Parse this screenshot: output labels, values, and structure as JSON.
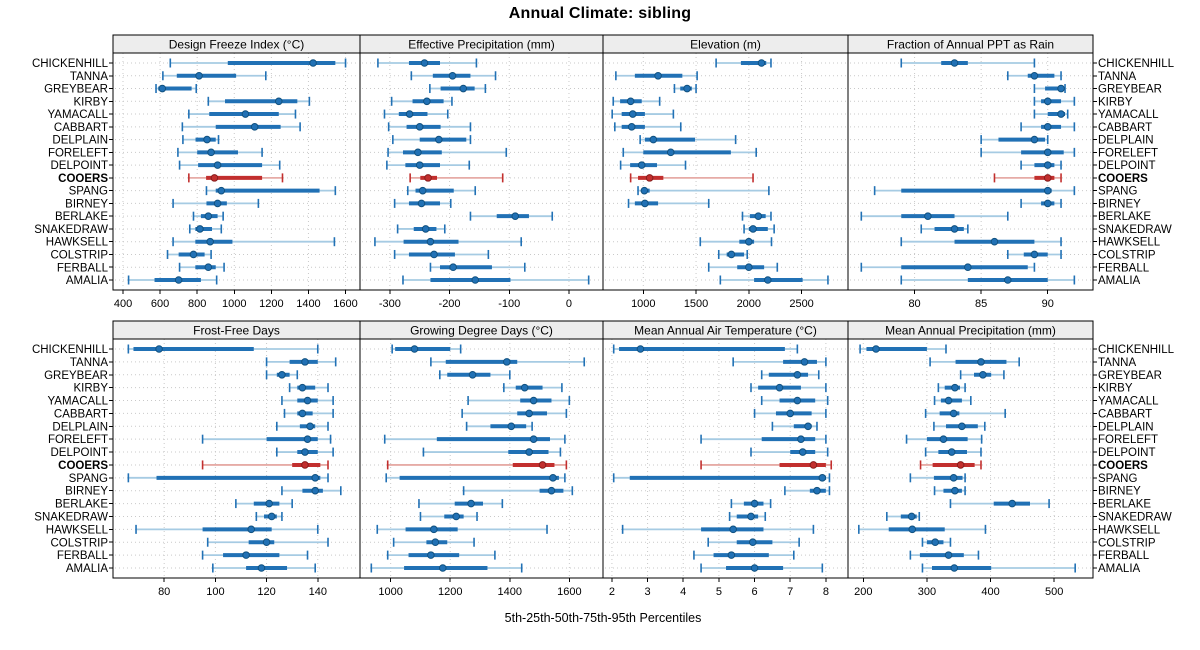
{
  "title": "Annual Climate: sibling",
  "footer_label": "5th-25th-50th-75th-95th Percentiles",
  "percentile_levels": [
    "5th",
    "25th",
    "50th",
    "75th",
    "95th"
  ],
  "stations": [
    "CHICKENHILL",
    "TANNA",
    "GREYBEAR",
    "KIRBY",
    "YAMACALL",
    "CABBART",
    "DELPLAIN",
    "FORELEFT",
    "DELPOINT",
    "COOERS",
    "SPANG",
    "BIRNEY",
    "BERLAKE",
    "SNAKEDRAW",
    "HAWKSELL",
    "COLSTRIP",
    "FERBALL",
    "AMALIA"
  ],
  "highlighted_station": "COOERS",
  "colors": {
    "series": "#2171b5",
    "series_light": "#a6cbe3",
    "series_dark": "#11517f",
    "highlight": "#c22f2e",
    "highlight_light": "#e6aba6",
    "highlight_dark": "#871d1c",
    "strip_bg": "#ededed",
    "grid": "#c9c9c9"
  },
  "chart_data": [
    {
      "type": "scatter",
      "subtype": "percentile-range-dotplot",
      "title": "Design Freeze Index (°C)",
      "grid": {
        "row": 0,
        "col": 0
      },
      "xlim": [
        346,
        1678
      ],
      "ticks": [
        400,
        600,
        800,
        1000,
        1200,
        1400,
        1600
      ],
      "values": [
        [
          655,
          965,
          1425,
          1545,
          1600
        ],
        [
          615,
          690,
          810,
          1010,
          1170
        ],
        [
          578,
          590,
          612,
          770,
          795
        ],
        [
          860,
          950,
          1240,
          1340,
          1405
        ],
        [
          755,
          865,
          1060,
          1240,
          1330
        ],
        [
          720,
          900,
          1110,
          1250,
          1355
        ],
        [
          723,
          791,
          853,
          900,
          915
        ],
        [
          696,
          800,
          875,
          1020,
          1150
        ],
        [
          705,
          805,
          910,
          1150,
          1245
        ],
        [
          755,
          848,
          893,
          1150,
          1260
        ],
        [
          850,
          900,
          930,
          1460,
          1545
        ],
        [
          670,
          850,
          910,
          960,
          1130
        ],
        [
          780,
          820,
          860,
          910,
          940
        ],
        [
          760,
          790,
          815,
          880,
          930
        ],
        [
          670,
          790,
          870,
          990,
          1540
        ],
        [
          640,
          700,
          780,
          840,
          875
        ],
        [
          705,
          790,
          860,
          900,
          945
        ],
        [
          430,
          570,
          700,
          820,
          905
        ]
      ]
    },
    {
      "type": "scatter",
      "subtype": "percentile-range-dotplot",
      "title": "Effective Precipitation (mm)",
      "grid": {
        "row": 0,
        "col": 1
      },
      "xlim": [
        -350,
        57
      ],
      "ticks": [
        -300,
        -200,
        -100,
        0
      ],
      "values": [
        [
          -320,
          -268,
          -242,
          -216,
          -155
        ],
        [
          -264,
          -228,
          -195,
          -165,
          -123
        ],
        [
          -233,
          -215,
          -177,
          -158,
          -140
        ],
        [
          -297,
          -262,
          -238,
          -210,
          -196
        ],
        [
          -309,
          -285,
          -267,
          -237,
          -203
        ],
        [
          -302,
          -272,
          -250,
          -215,
          -165
        ],
        [
          -295,
          -250,
          -218,
          -172,
          -165
        ],
        [
          -303,
          -278,
          -253,
          -213,
          -105
        ],
        [
          -305,
          -274,
          -250,
          -216,
          -167
        ],
        [
          -266,
          -249,
          -236,
          -221,
          -111
        ],
        [
          -270,
          -257,
          -245,
          -193,
          -157
        ],
        [
          -292,
          -268,
          -247,
          -216,
          -198
        ],
        [
          -165,
          -121,
          -90,
          -67,
          -28
        ],
        [
          -287,
          -260,
          -240,
          -222,
          -208
        ],
        [
          -325,
          -277,
          -232,
          -185,
          -80
        ],
        [
          -292,
          -268,
          -226,
          -191,
          -135
        ],
        [
          -232,
          -216,
          -194,
          -129,
          -74
        ],
        [
          -278,
          -232,
          -157,
          -98,
          33
        ]
      ]
    },
    {
      "type": "scatter",
      "subtype": "percentile-range-dotplot",
      "title": "Elevation (m)",
      "grid": {
        "row": 0,
        "col": 2
      },
      "xlim": [
        618,
        2940
      ],
      "ticks": [
        1000,
        1500,
        2000,
        2500
      ],
      "values": [
        [
          1690,
          1925,
          2120,
          2165,
          2210
        ],
        [
          740,
          920,
          1140,
          1370,
          1510
        ],
        [
          1295,
          1350,
          1415,
          1460,
          1500
        ],
        [
          715,
          780,
          880,
          985,
          1155
        ],
        [
          705,
          795,
          900,
          1015,
          1285
        ],
        [
          730,
          795,
          890,
          1015,
          1355
        ],
        [
          970,
          1015,
          1095,
          1490,
          1875
        ],
        [
          810,
          1000,
          1260,
          1830,
          2070
        ],
        [
          785,
          875,
          985,
          1130,
          1400
        ],
        [
          880,
          950,
          1060,
          1190,
          2040
        ],
        [
          950,
          990,
          1010,
          1060,
          2190
        ],
        [
          860,
          920,
          1015,
          1140,
          1620
        ],
        [
          1940,
          2010,
          2090,
          2160,
          2210
        ],
        [
          1955,
          2000,
          2040,
          2180,
          2240
        ],
        [
          1540,
          1910,
          2000,
          2050,
          2215
        ],
        [
          1715,
          1790,
          1835,
          1955,
          1985
        ],
        [
          1620,
          1890,
          2000,
          2145,
          2270
        ],
        [
          1730,
          2050,
          2180,
          2510,
          2750
        ]
      ]
    },
    {
      "type": "scatter",
      "subtype": "percentile-range-dotplot",
      "title": "Fraction of Annual PPT as Rain",
      "grid": {
        "row": 0,
        "col": 3
      },
      "xlim": [
        75.0,
        93.4
      ],
      "ticks": [
        80,
        85,
        90
      ],
      "values": [
        [
          79,
          82,
          83,
          84,
          89
        ],
        [
          87,
          88.5,
          89,
          90.5,
          91
        ],
        [
          89,
          89.8,
          91,
          91.1,
          91.3
        ],
        [
          89,
          89.5,
          90,
          91,
          92
        ],
        [
          89,
          90,
          91,
          91.3,
          91.5
        ],
        [
          88,
          89.5,
          90,
          91,
          92
        ],
        [
          85,
          86.3,
          89,
          89.8,
          90
        ],
        [
          85,
          88,
          90,
          91.2,
          92
        ],
        [
          88,
          89,
          90,
          90.5,
          91
        ],
        [
          86,
          89,
          90,
          90.5,
          91
        ],
        [
          77,
          79,
          90,
          90.3,
          92
        ],
        [
          88,
          89.5,
          90,
          90.5,
          91
        ],
        [
          76,
          79,
          81,
          83,
          87
        ],
        [
          80.5,
          81.5,
          83,
          83.7,
          84
        ],
        [
          79,
          83,
          86,
          89,
          91
        ],
        [
          87,
          88.2,
          89,
          90,
          91
        ],
        [
          76,
          79,
          84,
          88.5,
          89
        ],
        [
          79,
          84,
          87,
          90,
          92
        ]
      ]
    },
    {
      "type": "scatter",
      "subtype": "percentile-range-dotplot",
      "title": "Frost-Free Days",
      "grid": {
        "row": 1,
        "col": 0
      },
      "xlim": [
        60,
        156.5
      ],
      "ticks": [
        80,
        100,
        120,
        140
      ],
      "values": [
        [
          66,
          68,
          78,
          115,
          140
        ],
        [
          120,
          129,
          135,
          140,
          147
        ],
        [
          120,
          124,
          126,
          129,
          132
        ],
        [
          129,
          132,
          134,
          139,
          144
        ],
        [
          126,
          132,
          136,
          140,
          146
        ],
        [
          127,
          132,
          134,
          138,
          146
        ],
        [
          124,
          133,
          137,
          139,
          144
        ],
        [
          95,
          120,
          136,
          140,
          145
        ],
        [
          124,
          132,
          135,
          140,
          146
        ],
        [
          95,
          130,
          135,
          141,
          144
        ],
        [
          66,
          77,
          139,
          141,
          144
        ],
        [
          126,
          134,
          139,
          142,
          149
        ],
        [
          108,
          115,
          121,
          125,
          130
        ],
        [
          116,
          119,
          122,
          124,
          126
        ],
        [
          69,
          95,
          114,
          122,
          140
        ],
        [
          97,
          113,
          120,
          123,
          144
        ],
        [
          95,
          103,
          112,
          125,
          136
        ],
        [
          99,
          112,
          118,
          128,
          139
        ]
      ]
    },
    {
      "type": "scatter",
      "subtype": "percentile-range-dotplot",
      "title": "Growing Degree Days (°C)",
      "grid": {
        "row": 1,
        "col": 1
      },
      "xlim": [
        897,
        1713
      ],
      "ticks": [
        1000,
        1200,
        1400,
        1600
      ],
      "values": [
        [
          1005,
          1015,
          1080,
          1200,
          1235
        ],
        [
          1135,
          1185,
          1390,
          1425,
          1650
        ],
        [
          1165,
          1190,
          1275,
          1335,
          1400
        ],
        [
          1380,
          1420,
          1450,
          1510,
          1575
        ],
        [
          1260,
          1435,
          1480,
          1540,
          1600
        ],
        [
          1240,
          1425,
          1465,
          1525,
          1590
        ],
        [
          1255,
          1335,
          1405,
          1455,
          1475
        ],
        [
          980,
          1155,
          1480,
          1535,
          1585
        ],
        [
          1110,
          1395,
          1465,
          1530,
          1570
        ],
        [
          990,
          1410,
          1510,
          1550,
          1590
        ],
        [
          985,
          1030,
          1545,
          1565,
          1585
        ],
        [
          1245,
          1500,
          1540,
          1580,
          1610
        ],
        [
          1095,
          1215,
          1270,
          1310,
          1375
        ],
        [
          1100,
          1180,
          1220,
          1245,
          1290
        ],
        [
          955,
          1050,
          1145,
          1225,
          1525
        ],
        [
          1010,
          1120,
          1150,
          1190,
          1280
        ],
        [
          990,
          1060,
          1135,
          1230,
          1350
        ],
        [
          935,
          1045,
          1175,
          1325,
          1440
        ]
      ]
    },
    {
      "type": "scatter",
      "subtype": "percentile-range-dotplot",
      "title": "Mean Annual Air Temperature (°C)",
      "grid": {
        "row": 1,
        "col": 2
      },
      "xlim": [
        1.75,
        8.62
      ],
      "ticks": [
        2,
        3,
        4,
        5,
        6,
        7,
        8
      ],
      "values": [
        [
          2.05,
          2.2,
          2.8,
          6.85,
          7.2
        ],
        [
          5.4,
          6.8,
          7.4,
          7.75,
          8.0
        ],
        [
          6.2,
          6.4,
          7.2,
          7.5,
          7.8
        ],
        [
          5.9,
          6.1,
          6.7,
          7.3,
          8.0
        ],
        [
          6.2,
          6.7,
          7.2,
          7.7,
          8.05
        ],
        [
          6.0,
          6.6,
          7.0,
          7.6,
          8.0
        ],
        [
          6.5,
          7.1,
          7.5,
          7.6,
          7.75
        ],
        [
          4.5,
          6.2,
          7.3,
          7.7,
          8.0
        ],
        [
          5.9,
          7.0,
          7.35,
          7.7,
          8.05
        ],
        [
          4.5,
          6.7,
          7.65,
          8.0,
          8.15
        ],
        [
          2.05,
          2.5,
          7.9,
          8.0,
          8.1
        ],
        [
          6.85,
          7.55,
          7.75,
          8.0,
          8.1
        ],
        [
          5.35,
          5.7,
          6.0,
          6.25,
          6.45
        ],
        [
          5.3,
          5.5,
          5.9,
          6.1,
          6.3
        ],
        [
          2.3,
          4.5,
          5.4,
          6.25,
          7.65
        ],
        [
          4.7,
          5.5,
          5.95,
          6.5,
          7.25
        ],
        [
          4.3,
          4.85,
          5.35,
          6.4,
          7.1
        ],
        [
          4.5,
          5.2,
          6.0,
          6.8,
          7.9
        ]
      ]
    },
    {
      "type": "scatter",
      "subtype": "percentile-range-dotplot",
      "title": "Mean Annual Precipitation (mm)",
      "grid": {
        "row": 1,
        "col": 3
      },
      "xlim": [
        176,
        561
      ],
      "ticks": [
        200,
        300,
        400,
        500
      ],
      "values": [
        [
          195,
          205,
          220,
          300,
          330
        ],
        [
          305,
          345,
          385,
          425,
          445
        ],
        [
          353,
          374,
          388,
          401,
          421
        ],
        [
          318,
          328,
          344,
          352,
          360
        ],
        [
          312,
          322,
          334,
          355,
          369
        ],
        [
          298,
          320,
          342,
          351,
          423
        ],
        [
          311,
          330,
          355,
          380,
          391
        ],
        [
          268,
          300,
          326,
          364,
          386
        ],
        [
          298,
          318,
          339,
          363,
          385
        ],
        [
          290,
          309,
          353,
          375,
          385
        ],
        [
          274,
          311,
          342,
          356,
          360
        ],
        [
          312,
          326,
          344,
          355,
          360
        ],
        [
          337,
          405,
          434,
          462,
          492
        ],
        [
          237,
          259,
          276,
          284,
          288
        ],
        [
          193,
          240,
          277,
          328,
          392
        ],
        [
          293,
          300,
          313,
          326,
          337
        ],
        [
          274,
          289,
          334,
          358,
          381
        ],
        [
          293,
          308,
          343,
          401,
          533
        ]
      ]
    }
  ]
}
